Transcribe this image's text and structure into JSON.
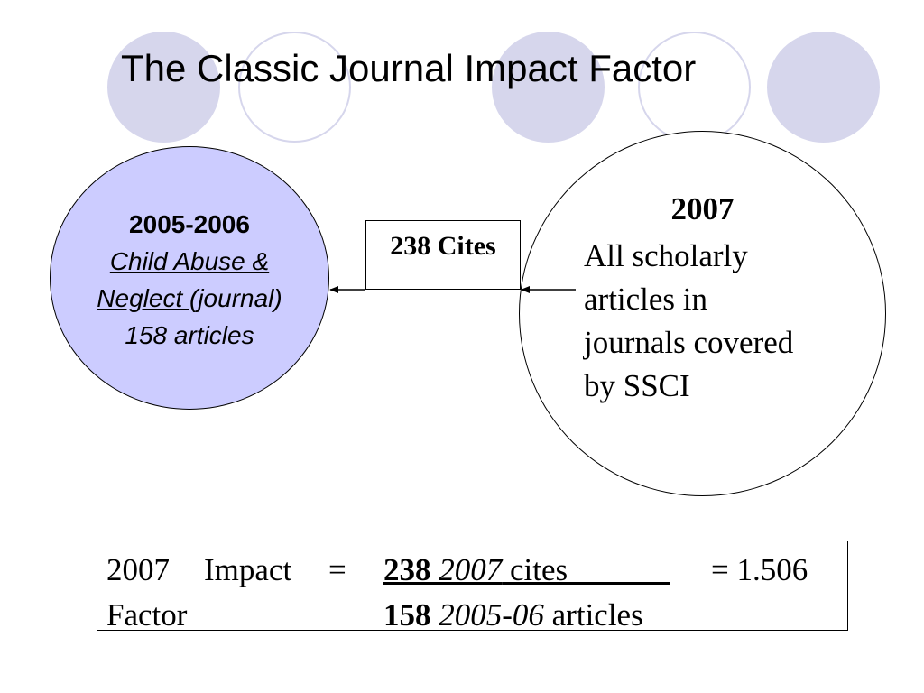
{
  "slide": {
    "title": "The Classic Journal Impact Factor"
  },
  "left_circle": {
    "years": "2005-2006",
    "journal_line1": "Child Abuse & ",
    "journal_line2": "Neglect ",
    "journal_suffix": "(journal)",
    "articles": "158 articles",
    "fill_color": "#ccccff"
  },
  "cites_box": {
    "label": "238 Cites"
  },
  "right_circle": {
    "year": "2007",
    "description_lines": [
      "All scholarly",
      "articles in",
      "journals covered",
      "by SSCI"
    ]
  },
  "formula": {
    "year": "2007",
    "impact_word": "Impact",
    "equals1": "=",
    "factor_word": "Factor",
    "numerator_value": "238",
    "numerator_year": "2007",
    "numerator_unit": "cites",
    "numerator_pad": "             ",
    "equals2": "=",
    "result": "1.506",
    "denominator_value": "158",
    "denominator_years": "2005-06",
    "denominator_unit": "articles"
  },
  "decor_color": "#d6d6ec"
}
